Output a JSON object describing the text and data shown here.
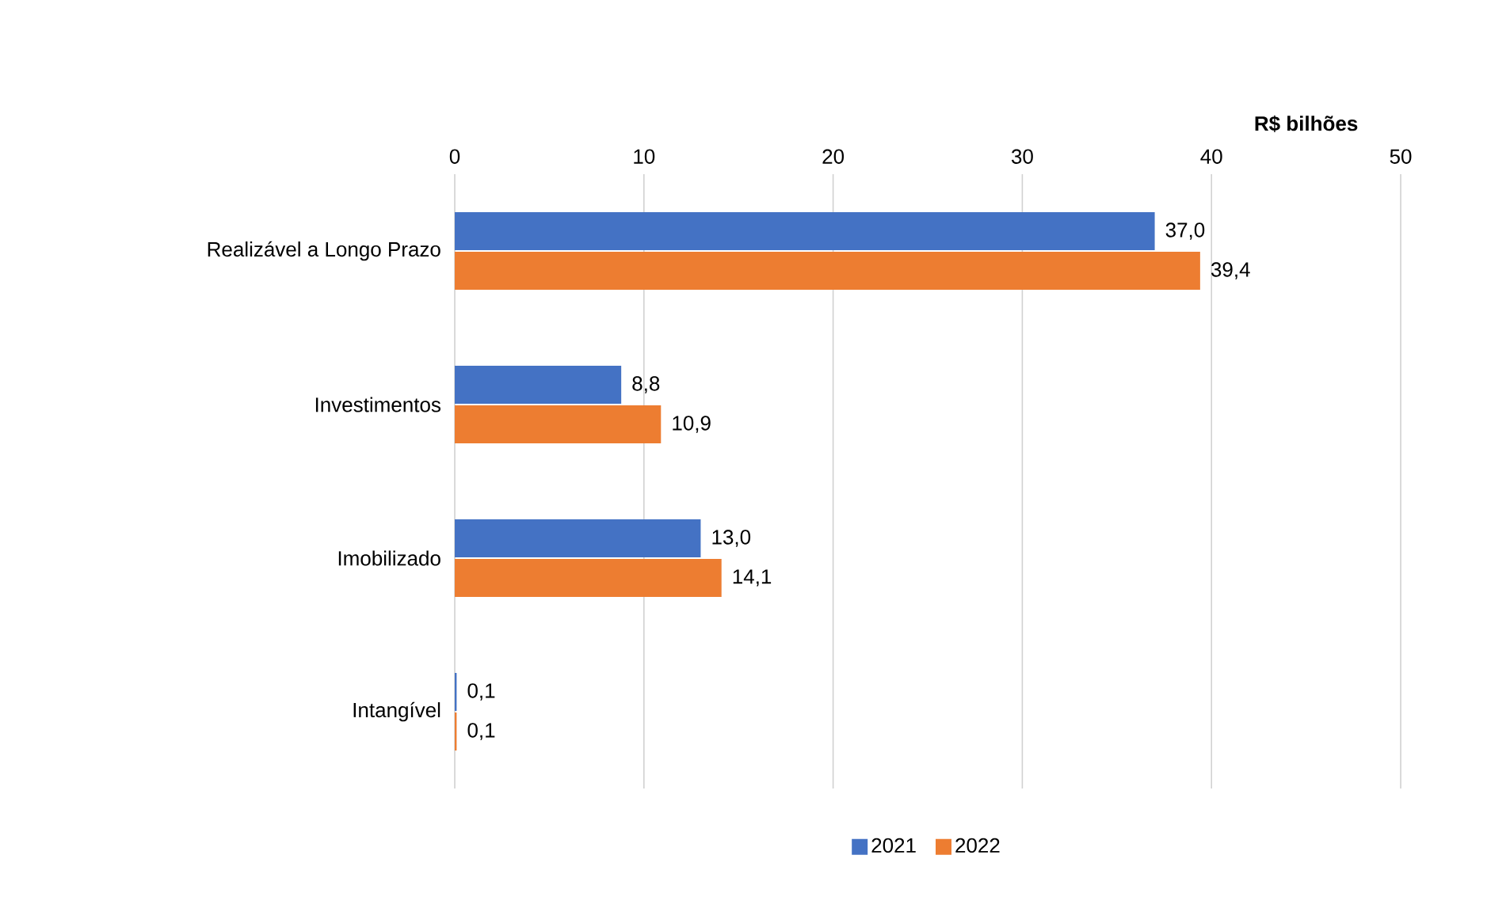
{
  "chart_data": {
    "type": "bar",
    "orientation": "horizontal",
    "xlabel": "R$ bilhões",
    "categories": [
      "Realizável a Longo Prazo",
      "Investimentos",
      "Imobilizado",
      "Intangível"
    ],
    "series": [
      {
        "name": "2021",
        "color": "#4472c4",
        "values": [
          37.0,
          8.8,
          13.0,
          0.1
        ],
        "value_labels": [
          "37,0",
          "8,8",
          "13,0",
          "0,1"
        ]
      },
      {
        "name": "2022",
        "color": "#ed7d31",
        "values": [
          39.4,
          10.9,
          14.1,
          0.1
        ],
        "value_labels": [
          "39,4",
          "10,9",
          "14,1",
          "0,1"
        ]
      }
    ],
    "xlim": [
      0,
      50
    ],
    "xticks": [
      0,
      10,
      20,
      30,
      40,
      50
    ],
    "grid": "x",
    "legend": "bottom"
  }
}
